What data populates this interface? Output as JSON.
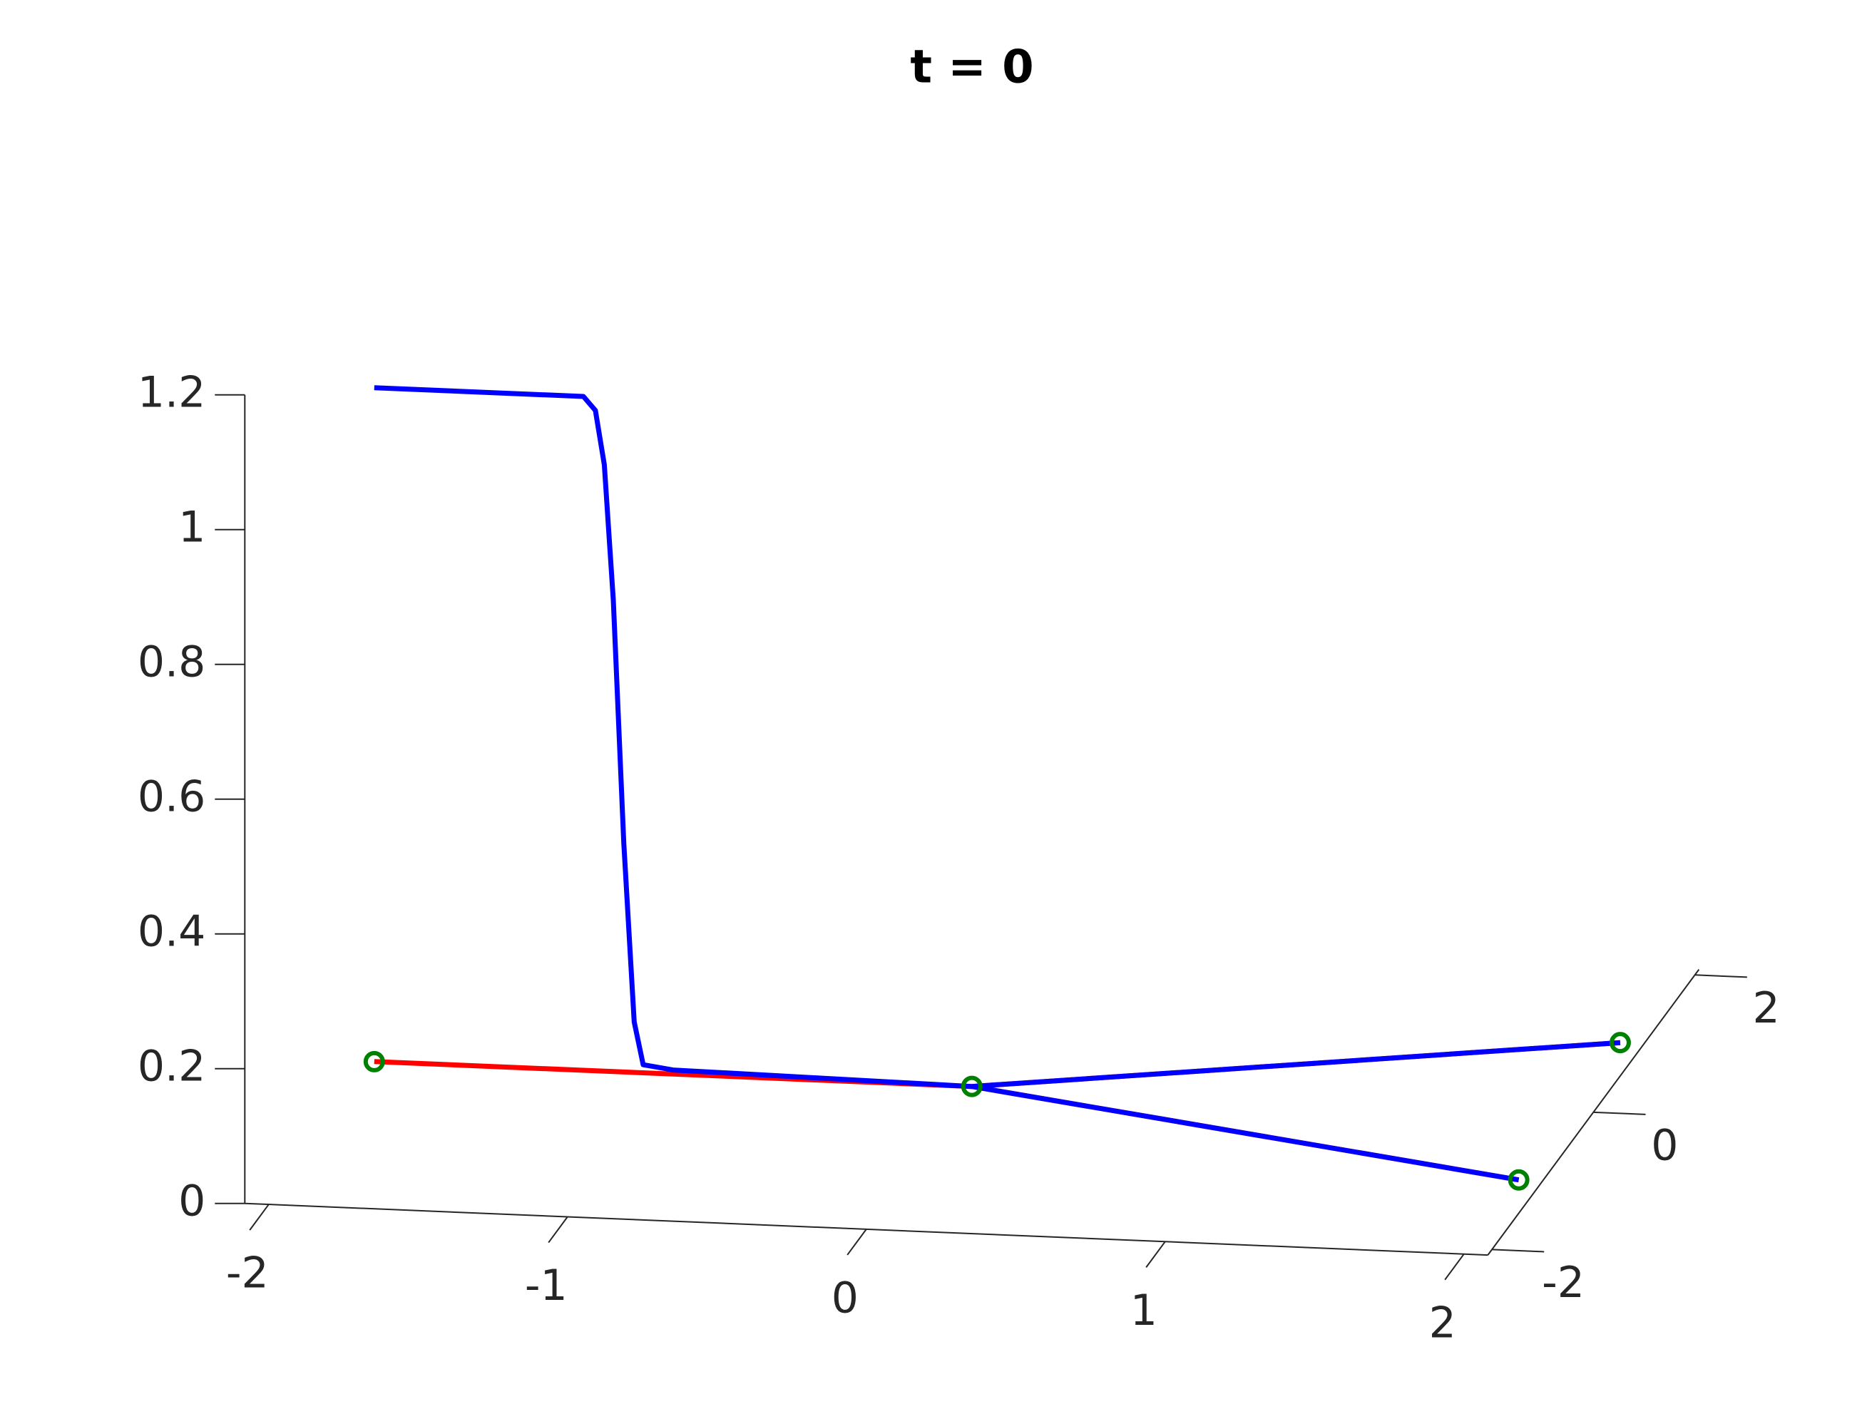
{
  "chart_data": {
    "type": "line3d",
    "title": "t = 0",
    "xlim": [
      -2.08,
      2.08
    ],
    "ylim": [
      -2.08,
      2.08
    ],
    "zlim": [
      0,
      1.2
    ],
    "xticks": [
      -2,
      -1,
      0,
      1,
      2
    ],
    "yticks": [
      -2,
      0,
      2
    ],
    "zticks": [
      0,
      0.2,
      0.4,
      0.6,
      0.8,
      1,
      1.2
    ],
    "series": [
      {
        "color": "#ff0000",
        "x": [
          -2,
          0
        ],
        "y": [
          0,
          0
        ],
        "z": [
          0,
          0
        ]
      },
      {
        "color": "#ff0000",
        "x": [
          0,
          2
        ],
        "y": [
          0,
          1
        ],
        "z": [
          0,
          0
        ]
      },
      {
        "color": "#ff0000",
        "x": [
          0,
          2
        ],
        "y": [
          0,
          -1
        ],
        "z": [
          0,
          0
        ]
      },
      {
        "color": "#0000ff",
        "x": [
          -2,
          -1.3,
          -1.26,
          -1.23,
          -1.2,
          -1.165,
          -1.13,
          -1.1,
          -1.0,
          -0.5,
          0
        ],
        "y": [
          0,
          0,
          0,
          0,
          0,
          0,
          0,
          0,
          0,
          0,
          0
        ],
        "z": [
          1,
          1,
          0.98,
          0.9,
          0.7,
          0.34,
          0.075,
          0.012,
          0.006,
          0.003,
          0
        ]
      },
      {
        "color": "#0000ff",
        "x": [
          0,
          2
        ],
        "y": [
          0,
          1
        ],
        "z": [
          0,
          0
        ]
      },
      {
        "color": "#0000ff",
        "x": [
          0,
          2
        ],
        "y": [
          0,
          -1
        ],
        "z": [
          0,
          0
        ]
      }
    ],
    "nodes": {
      "color": "#008000",
      "x": [
        -2,
        0,
        2,
        2
      ],
      "y": [
        0,
        0,
        1,
        -1
      ],
      "z": [
        0,
        0,
        0,
        0
      ]
    }
  }
}
